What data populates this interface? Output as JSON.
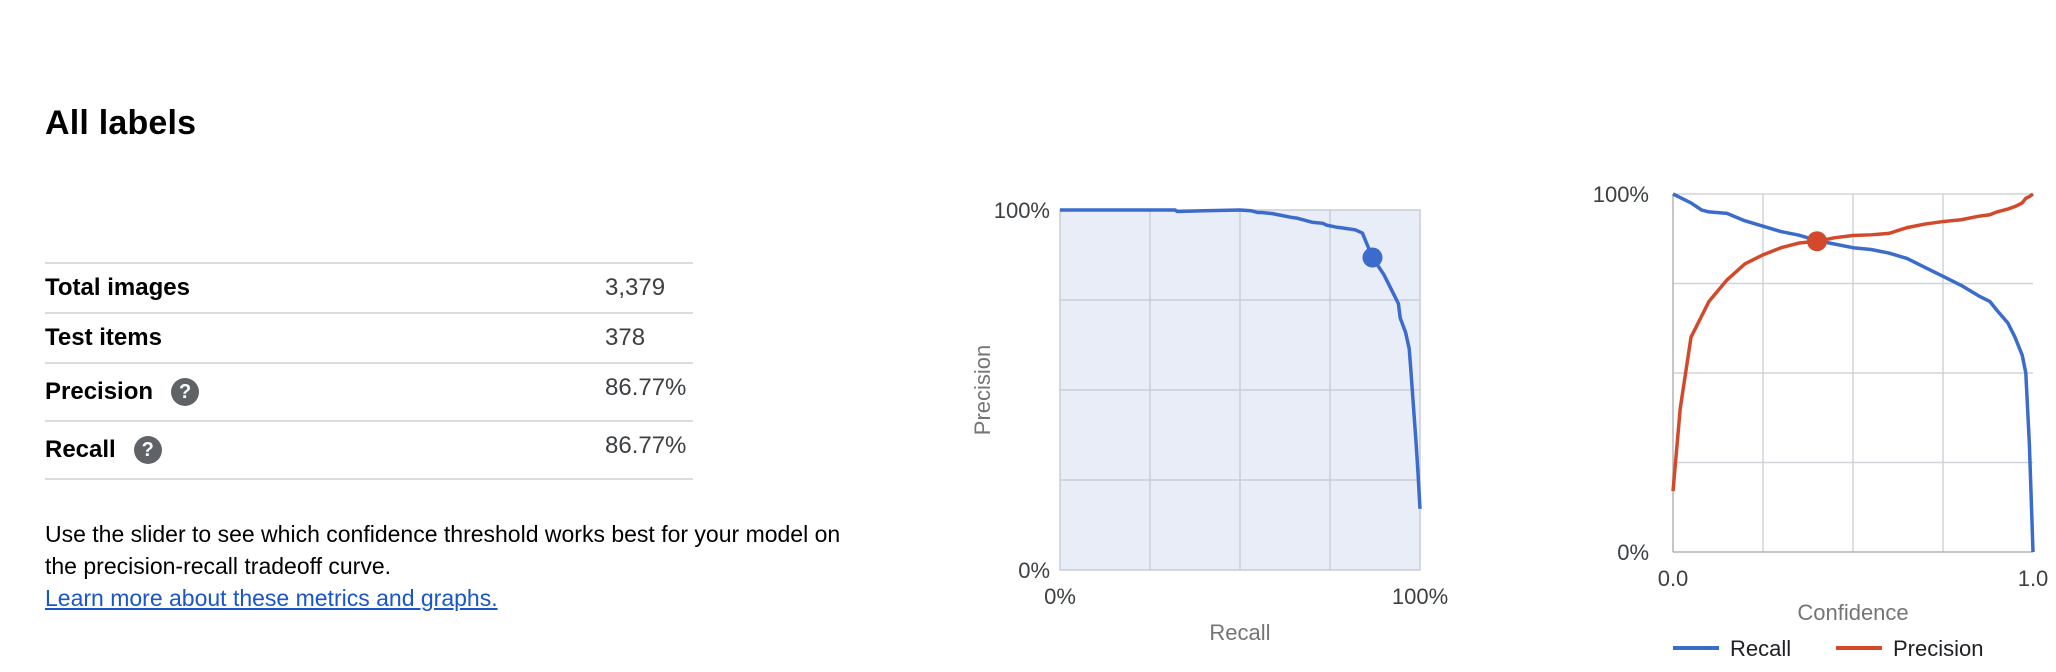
{
  "page": {
    "title": "All labels"
  },
  "metrics": [
    {
      "label": "Total images",
      "value": "3,379",
      "help": false
    },
    {
      "label": "Test items",
      "value": "378",
      "help": false
    },
    {
      "label": "Precision",
      "value": "86.77%",
      "help": true
    },
    {
      "label": "Recall",
      "value": "86.77%",
      "help": true
    }
  ],
  "help_icon_glyph": "?",
  "description": {
    "text": "Use the slider to see which confidence threshold works best for your model on the precision-recall tradeoff curve.",
    "link_text": "Learn more about these metrics and graphs."
  },
  "chart_data": [
    {
      "type": "area",
      "xlabel": "Recall",
      "ylabel": "Precision",
      "x_ticks": [
        "0%",
        "100%"
      ],
      "y_ticks": [
        "0%",
        "100%"
      ],
      "xlim": [
        0,
        100
      ],
      "ylim": [
        0,
        100
      ],
      "grid": true,
      "color": "#3c6ccb",
      "fill": "#e8edf8",
      "x": [
        0,
        10,
        20,
        32,
        32.5,
        40,
        50,
        53,
        55,
        56,
        59,
        62,
        64,
        66,
        70,
        73,
        74,
        77,
        80,
        82,
        84,
        86.8,
        88,
        90,
        92,
        94,
        94.5,
        96,
        97,
        97.5,
        98,
        98.5,
        99,
        99.5,
        100
      ],
      "y": [
        100,
        100,
        100,
        100,
        99.6,
        99.8,
        100,
        99.8,
        99.3,
        99.3,
        99,
        98.4,
        98,
        97.7,
        96.6,
        96.3,
        95.8,
        95.2,
        94.8,
        94.5,
        93.6,
        86.8,
        85,
        82,
        78,
        74,
        70,
        66,
        61.5,
        55,
        48,
        41,
        34,
        26,
        17
      ],
      "marker": {
        "x": 86.8,
        "y": 86.8
      }
    },
    {
      "type": "line",
      "xlabel": "Confidence",
      "ylabel": "",
      "x_ticks": [
        "0.0",
        "1.0"
      ],
      "y_ticks": [
        "0%",
        "100%"
      ],
      "xlim": [
        0,
        1
      ],
      "ylim": [
        0,
        100
      ],
      "grid": true,
      "legend": "bottom",
      "x": [
        0,
        0.02,
        0.05,
        0.08,
        0.1,
        0.15,
        0.2,
        0.25,
        0.3,
        0.35,
        0.4,
        0.45,
        0.5,
        0.55,
        0.6,
        0.65,
        0.7,
        0.75,
        0.8,
        0.85,
        0.88,
        0.9,
        0.93,
        0.95,
        0.97,
        0.98,
        0.99,
        1.0
      ],
      "series": [
        {
          "name": "Recall",
          "color": "#3c6ccb",
          "values": [
            100,
            99,
            97.5,
            95.5,
            95,
            94.6,
            92.5,
            91,
            89.5,
            88.5,
            87,
            86,
            85,
            84.5,
            83.5,
            82,
            79.5,
            77,
            74.5,
            71.5,
            70,
            67.5,
            64,
            60,
            55,
            50,
            30,
            0
          ]
        },
        {
          "name": "Precision",
          "color": "#d24a2b",
          "values": [
            17,
            40,
            60,
            66,
            70,
            76,
            80.5,
            83,
            85,
            86.3,
            86.8,
            87.8,
            88.4,
            88.6,
            89,
            90.6,
            91.6,
            92.3,
            92.8,
            93.8,
            94.2,
            95,
            95.8,
            96.5,
            97.5,
            98.8,
            99.3,
            100
          ]
        }
      ],
      "marker": {
        "x": 0.4,
        "y": 86.8,
        "color": "#d24a2b"
      }
    }
  ]
}
